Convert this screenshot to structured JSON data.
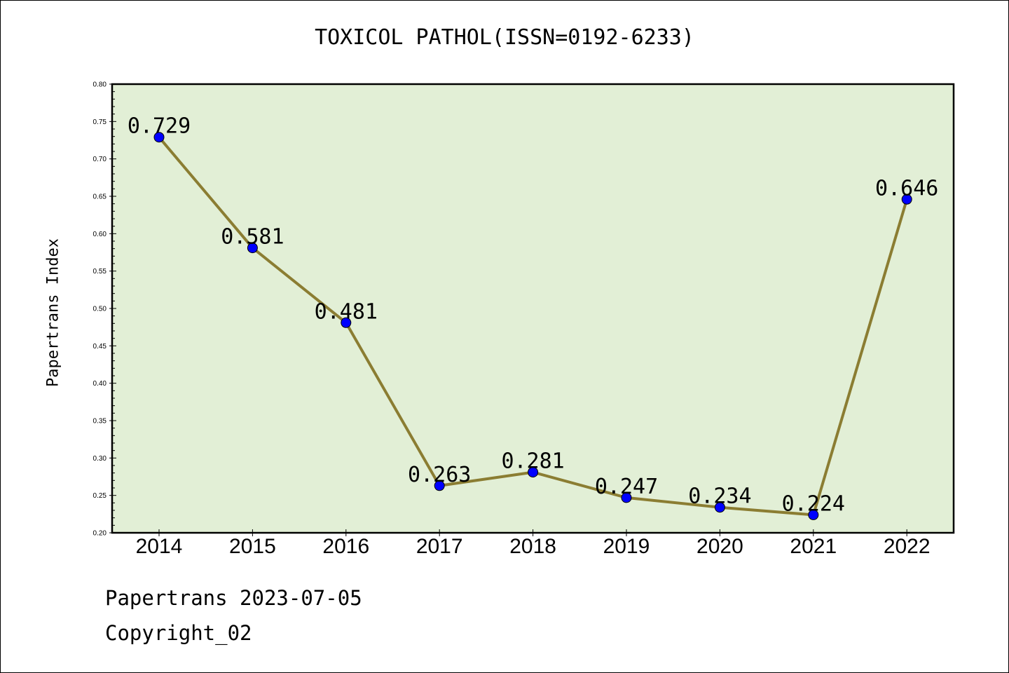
{
  "chart_data": {
    "type": "line",
    "title": "TOXICOL PATHOL(ISSN=0192-6233)",
    "xlabel": "",
    "ylabel": "Papertrans Index",
    "categories": [
      "2014",
      "2015",
      "2016",
      "2017",
      "2018",
      "2019",
      "2020",
      "2021",
      "2022"
    ],
    "series": [
      {
        "values": [
          0.729,
          0.581,
          0.481,
          0.263,
          0.281,
          0.247,
          0.234,
          0.224,
          0.646
        ],
        "labels": [
          "0.729",
          "0.581",
          "0.481",
          "0.263",
          "0.281",
          "0.247",
          "0.234",
          "0.224",
          "0.646"
        ]
      }
    ],
    "ylim": [
      0.2,
      0.8
    ],
    "yticks": [
      "0.20",
      "0.25",
      "0.30",
      "0.35",
      "0.40",
      "0.45",
      "0.50",
      "0.55",
      "0.60",
      "0.65",
      "0.70",
      "0.75",
      "0.80"
    ],
    "grid": false,
    "legend": "none",
    "colors": {
      "plot_background": "#e2efd6",
      "line": "#8b7d32",
      "marker": "#0000ff"
    }
  },
  "footer": {
    "date_text": "Papertrans 2023-07-05",
    "copyright_text": "Copyright_02"
  }
}
